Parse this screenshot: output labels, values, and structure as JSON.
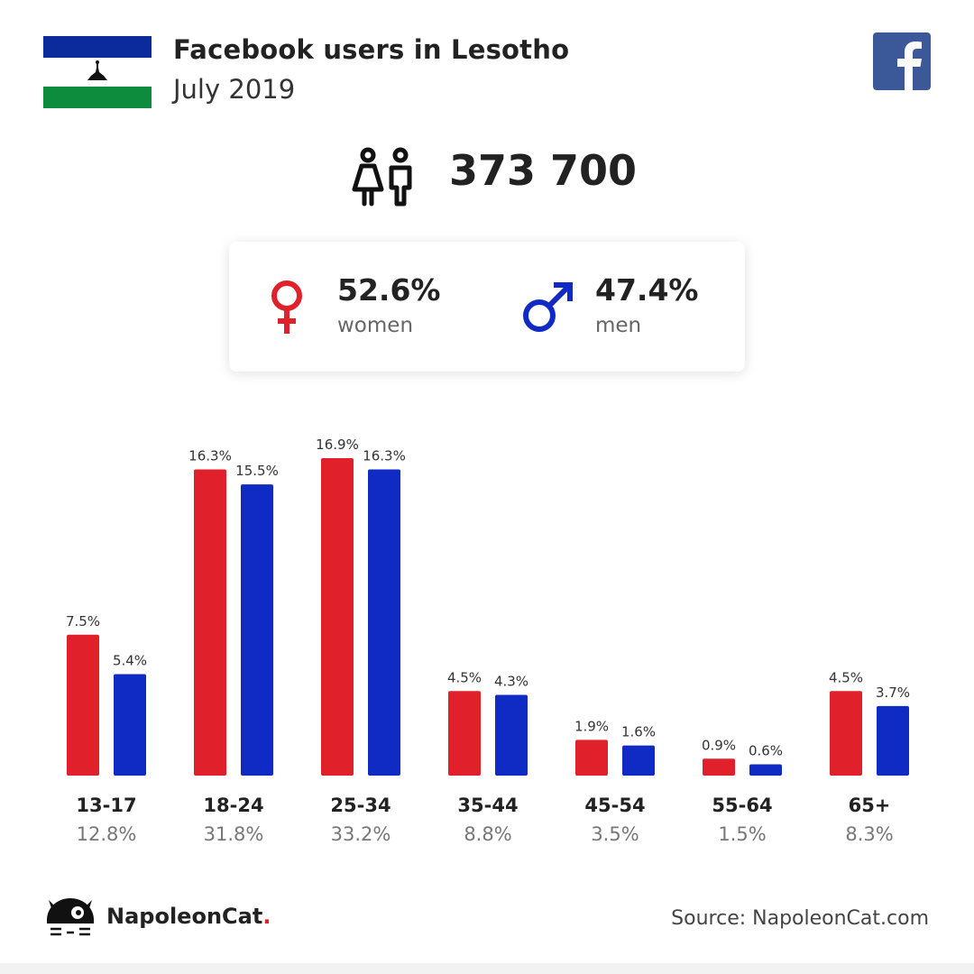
{
  "header": {
    "title": "Facebook users in Lesotho",
    "date": "July 2019"
  },
  "total": {
    "value": "373 700",
    "icon": "people-icon"
  },
  "gender": {
    "women": {
      "percent": "52.6%",
      "label": "women",
      "color": "#e0202a",
      "icon": "female-icon"
    },
    "men": {
      "percent": "47.4%",
      "label": "men",
      "color": "#0f2bc4",
      "icon": "male-icon"
    }
  },
  "colors": {
    "flag_blue": "#0b2a9c",
    "flag_green": "#0c8c3c",
    "facebook_blue": "#3b5998"
  },
  "chart_data": {
    "type": "bar",
    "categories": [
      "13-17",
      "18-24",
      "25-34",
      "35-44",
      "45-54",
      "55-64",
      "65+"
    ],
    "category_totals": [
      "12.8%",
      "31.8%",
      "33.2%",
      "8.8%",
      "3.5%",
      "1.5%",
      "8.3%"
    ],
    "series": [
      {
        "color": "#e0202a",
        "values": [
          7.5,
          16.3,
          16.9,
          4.5,
          1.9,
          0.9,
          4.5
        ]
      },
      {
        "color": "#0f2bc4",
        "values": [
          5.4,
          15.5,
          16.3,
          4.3,
          1.6,
          0.6,
          3.7
        ]
      }
    ],
    "value_suffix": "%",
    "ylim": [
      0,
      16.9
    ],
    "grid": false
  },
  "footer": {
    "brand": "NapoleonCat",
    "brand_dot": ".",
    "source": "Source: NapoleonCat.com"
  }
}
